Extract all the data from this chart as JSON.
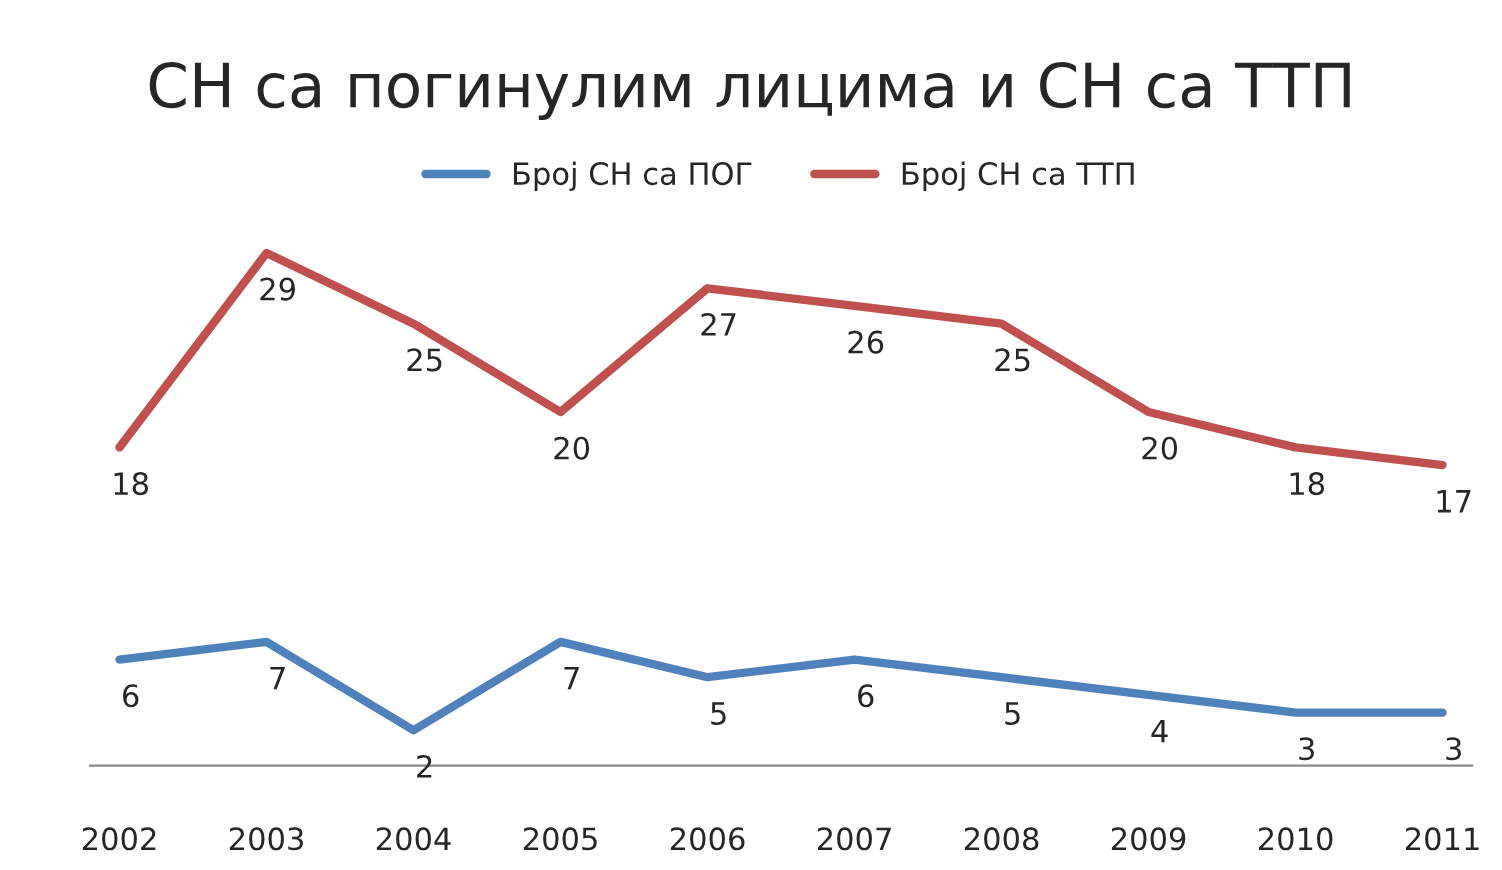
{
  "chart_data": {
    "type": "line",
    "title": "СН са погинулим лицима и СН са ТТП",
    "categories": [
      "2002",
      "2003",
      "2004",
      "2005",
      "2006",
      "2007",
      "2008",
      "2009",
      "2010",
      "2011"
    ],
    "series": [
      {
        "name": "Број СН са ПОГ",
        "color": "#4f81bd",
        "values": [
          6,
          7,
          2,
          7,
          5,
          6,
          5,
          4,
          3,
          3
        ]
      },
      {
        "name": "Број СН са ТТП",
        "color": "#c0504d",
        "values": [
          18,
          29,
          25,
          20,
          27,
          26,
          25,
          20,
          18,
          17
        ]
      }
    ],
    "data_labels": true,
    "legend": "top",
    "grid": false,
    "marker": "none",
    "line_style": "solid"
  }
}
